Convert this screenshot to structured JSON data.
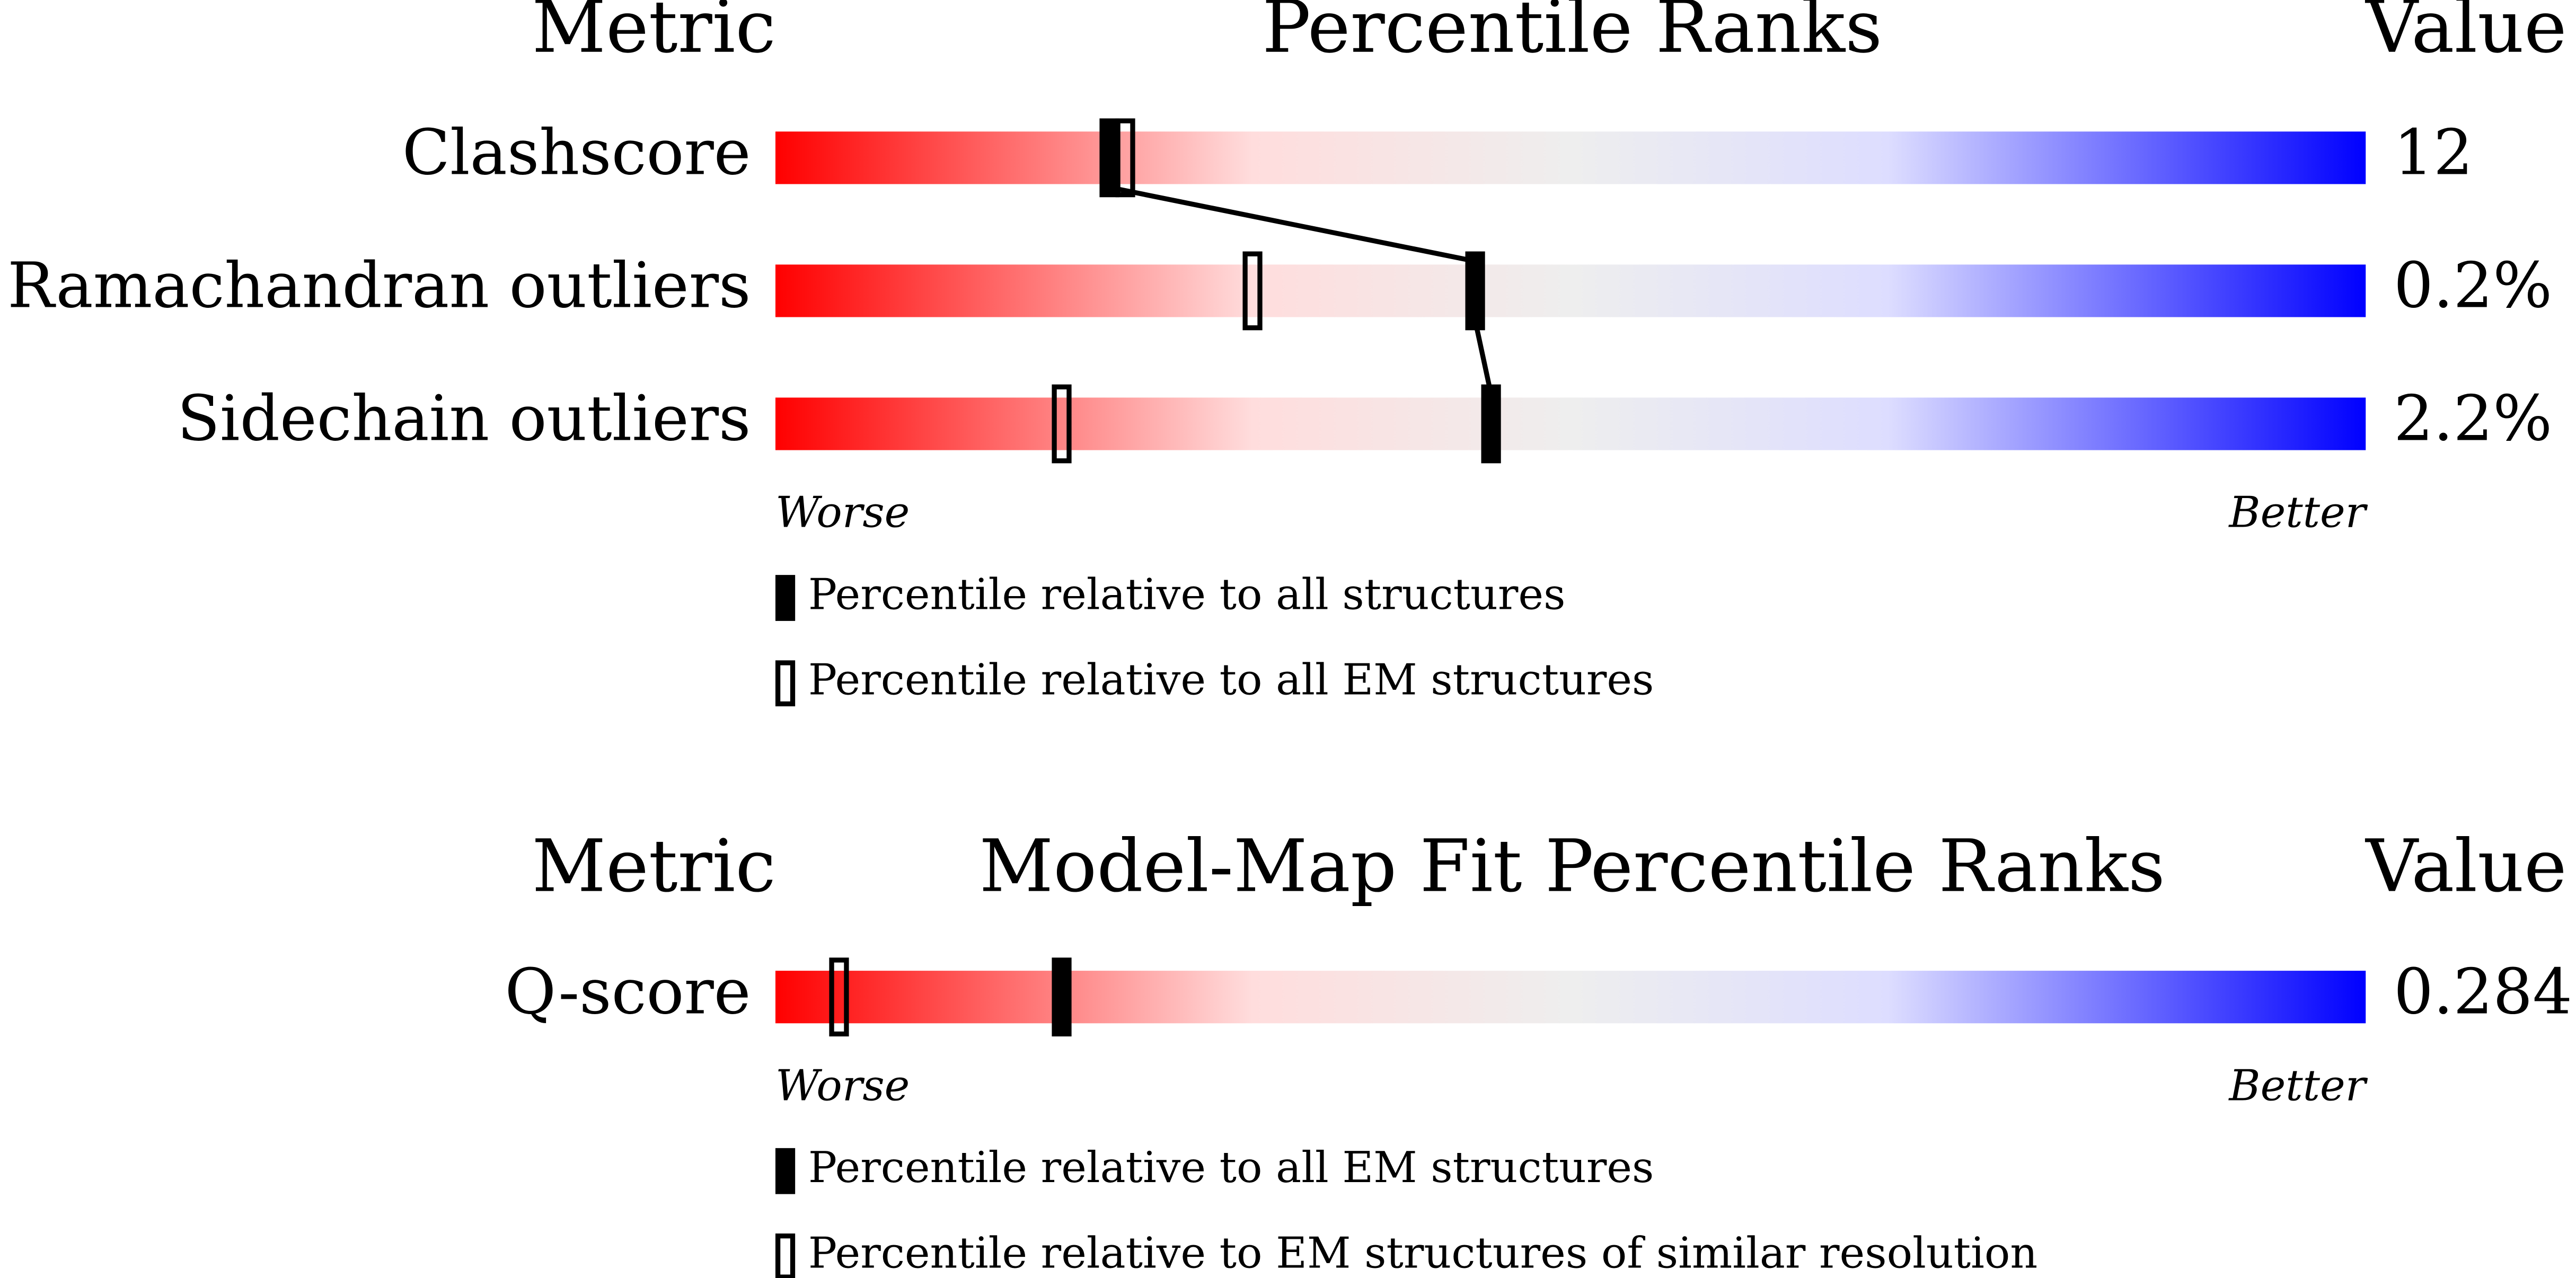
{
  "panels": [
    {
      "headers": {
        "metric": "Metric",
        "title": "Percentile Ranks",
        "value": "Value"
      },
      "xlim": [
        0,
        100
      ],
      "rows": [
        {
          "metric": "Clashscore",
          "value": "12",
          "ranks": [
            21,
            22
          ]
        },
        {
          "metric": "Ramachandran outliers",
          "value": "0.2%",
          "ranks": [
            44,
            30
          ]
        },
        {
          "metric": "Sidechain outliers",
          "value": "2.2%",
          "ranks": [
            45,
            18
          ]
        }
      ],
      "worse": "Worse",
      "better": "Better",
      "legend": [
        {
          "label": "Percentile relative to all structures",
          "style": "filled"
        },
        {
          "label": "Percentile relative to all EM structures",
          "style": "open"
        }
      ]
    },
    {
      "headers": {
        "metric": "Metric",
        "title": "Model-Map Fit Percentile Ranks",
        "value": "Value"
      },
      "xlim": [
        0,
        100
      ],
      "rows": [
        {
          "metric": "Q-score",
          "value": "0.284",
          "ranks": [
            18,
            4
          ]
        }
      ],
      "worse": "Worse",
      "better": "Better",
      "legend": [
        {
          "label": "Percentile relative to all EM structures",
          "style": "filled"
        },
        {
          "label": "Percentile relative to EM structures of similar resolution",
          "style": "open"
        }
      ]
    }
  ]
}
